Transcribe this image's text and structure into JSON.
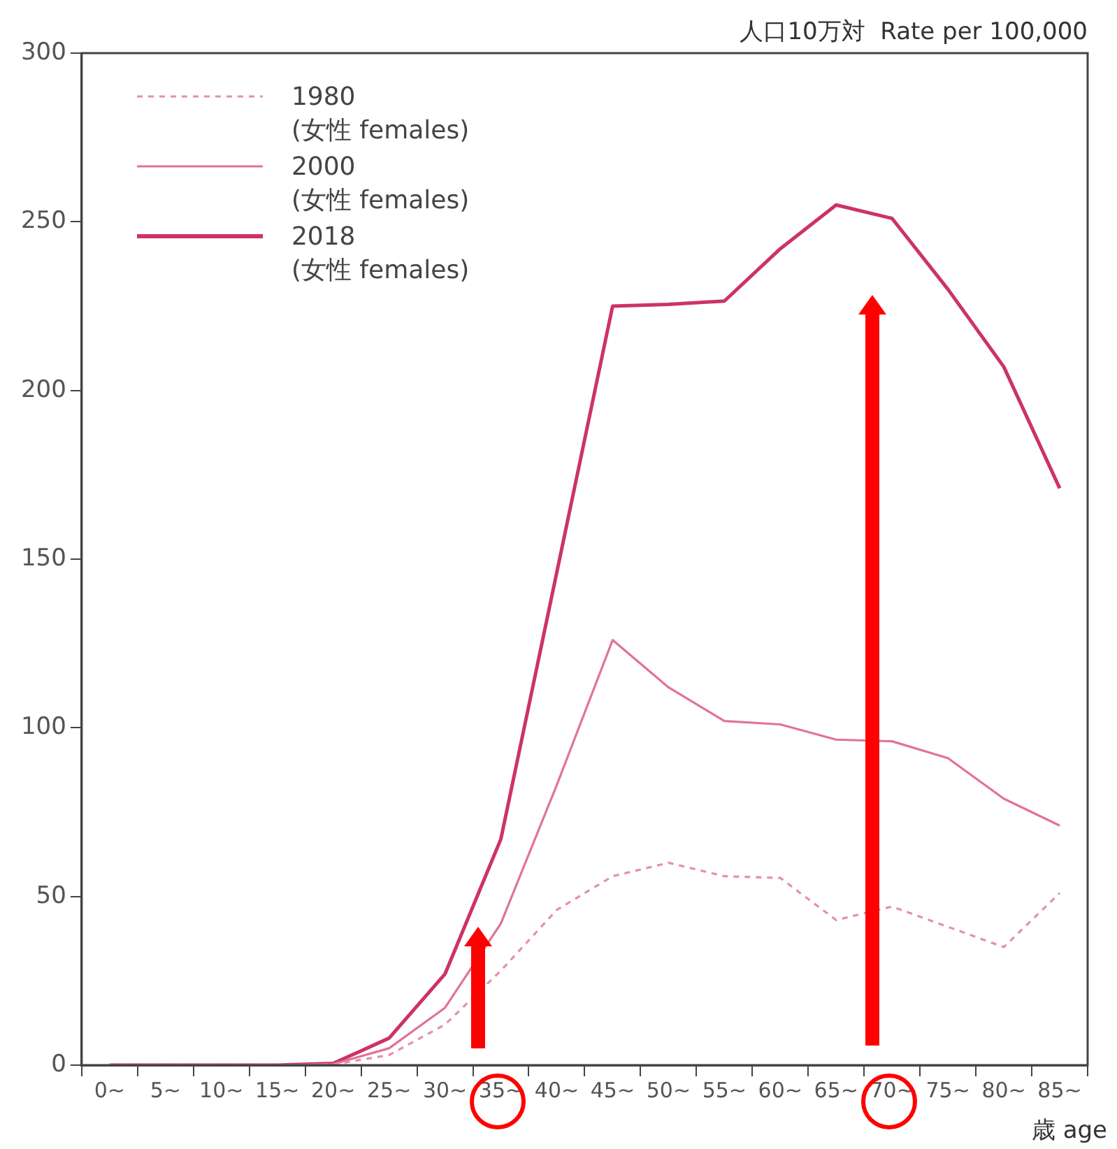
{
  "chart_data": {
    "type": "line",
    "ylabel": "人口10万対  Rate per 100,000",
    "xlabel": "歳 age",
    "categories": [
      "0~",
      "5~",
      "10~",
      "15~",
      "20~",
      "25~",
      "30~",
      "35~",
      "40~",
      "45~",
      "50~",
      "55~",
      "60~",
      "65~",
      "70~",
      "75~",
      "80~",
      "85~"
    ],
    "series": [
      {
        "name": "1980 (女性 females)",
        "color": "#e58fab",
        "line_style": "dashed",
        "values": [
          0,
          0,
          0,
          0,
          0.2,
          3,
          12,
          28,
          46,
          56,
          60,
          56,
          55.5,
          43,
          47,
          41,
          35,
          51
        ]
      },
      {
        "name": "2000 (女性 females)",
        "color": "#e07396",
        "line_style": "solid",
        "values": [
          0,
          0,
          0,
          0,
          0.3,
          5,
          17,
          42,
          83,
          126,
          112,
          102,
          101,
          96.5,
          96,
          91,
          79,
          71
        ]
      },
      {
        "name": "2018 (女性 females)",
        "color": "#cc3366",
        "line_style": "solid",
        "values": [
          0,
          0,
          0,
          0,
          0.5,
          8,
          27,
          67,
          146,
          225,
          225.5,
          226.5,
          242,
          255,
          251,
          230,
          207,
          171
        ]
      }
    ],
    "ylim": [
      0,
      300
    ],
    "yticks": [
      0,
      50,
      100,
      150,
      200,
      250,
      300
    ],
    "grid": false,
    "legend": "top left",
    "marker": "none"
  }
}
